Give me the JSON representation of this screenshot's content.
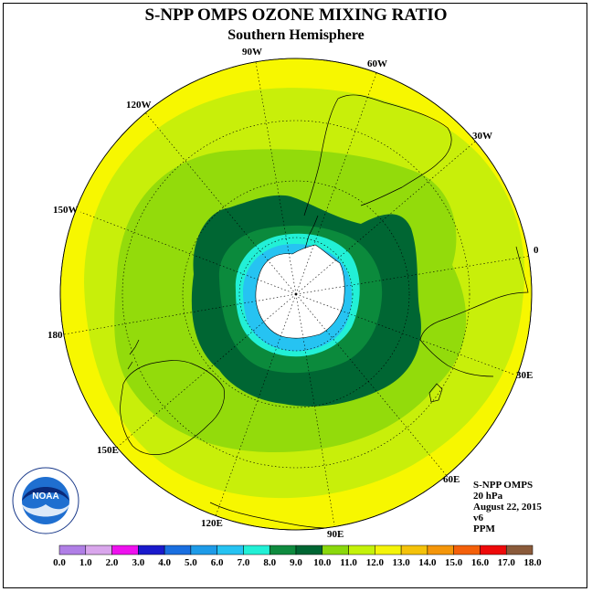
{
  "title": "S-NPP OMPS OZONE MIXING RATIO",
  "subtitle": "Southern Hemisphere",
  "longitude_labels": [
    {
      "text": "90W"
    },
    {
      "text": "60W"
    },
    {
      "text": "30W"
    },
    {
      "text": "0"
    },
    {
      "text": "30E"
    },
    {
      "text": "60E"
    },
    {
      "text": "90E"
    },
    {
      "text": "120E"
    },
    {
      "text": "150E"
    },
    {
      "text": "180"
    },
    {
      "text": "150W"
    },
    {
      "text": "120W"
    }
  ],
  "info": {
    "instrument": "S-NPP OMPS",
    "level": "20 hPa",
    "date": "August 22, 2015",
    "version": "v6",
    "units": "PPM"
  },
  "logo": {
    "text": "NOAA",
    "ring_text": "NATIONAL OCEANIC AND ATMOSPHERIC ADMINISTRATION · U.S. DEPARTMENT OF COMMERCE"
  },
  "colorbar": {
    "ticks": [
      "0.0",
      "1.0",
      "2.0",
      "3.0",
      "4.0",
      "5.0",
      "6.0",
      "7.0",
      "8.0",
      "9.0",
      "10.0",
      "11.0",
      "12.0",
      "13.0",
      "14.0",
      "15.0",
      "16.0",
      "17.0",
      "18.0"
    ],
    "colors": [
      "#b07fe6",
      "#d9a6ec",
      "#ee11ee",
      "#1a1acc",
      "#1a6fe0",
      "#1e9be8",
      "#26c3f2",
      "#22f0d6",
      "#0f8b3f",
      "#006633",
      "#8ad80c",
      "#c4f20a",
      "#f4f40a",
      "#f4c20a",
      "#f4960a",
      "#f4600a",
      "#ee0a0a",
      "#8a5a3a"
    ]
  },
  "colors": {
    "yellow": "#f7f700",
    "yellow_green": "#c8ef0a",
    "light_green": "#93db0b",
    "green": "#0b8a3c",
    "dark_green": "#006633",
    "aqua": "#22f0d6",
    "light_blue": "#26c3f2",
    "blue": "#1e9be8",
    "antarctica": "#ffffff"
  }
}
